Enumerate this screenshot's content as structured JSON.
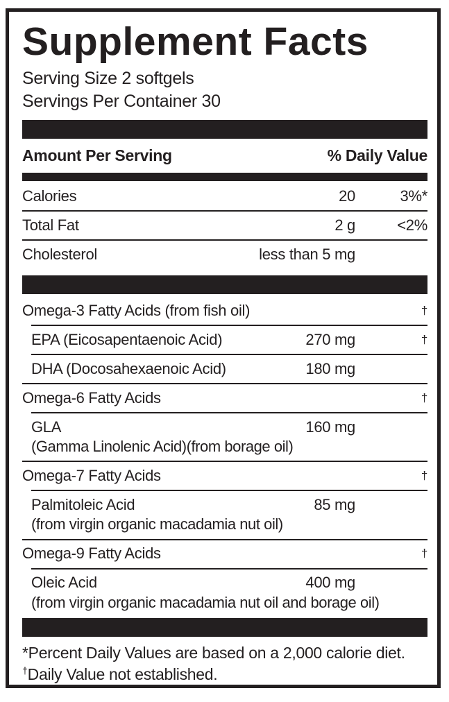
{
  "label": {
    "title": "Supplement Facts",
    "serving_size": "Serving Size 2 softgels",
    "servings_per_container": "Servings Per Container 30",
    "header": {
      "amount": "Amount Per Serving",
      "daily_value": "% Daily Value"
    },
    "rows": [
      {
        "name": "Calories",
        "amount": "20",
        "dv": "3%*"
      },
      {
        "name": "Total Fat",
        "amount": "2 g",
        "dv": "<2%"
      },
      {
        "name": "Cholesterol",
        "amount": "less than 5 mg",
        "dv": ""
      },
      {
        "name": "Omega-3 Fatty Acids (from fish oil)",
        "amount": "",
        "dv": "†"
      },
      {
        "name": "EPA (Eicosapentaenoic Acid)",
        "amount": "270 mg",
        "dv": "†"
      },
      {
        "name": "DHA (Docosahexaenoic Acid)",
        "amount": "180 mg",
        "dv": ""
      },
      {
        "name": "Omega-6 Fatty Acids",
        "amount": "",
        "dv": "†"
      },
      {
        "name": "GLA",
        "amount": "160 mg",
        "dv": "",
        "subline": "(Gamma Linolenic Acid)(from borage oil)"
      },
      {
        "name": "Omega-7 Fatty Acids",
        "amount": "",
        "dv": "†"
      },
      {
        "name": "Palmitoleic Acid",
        "amount": "85 mg",
        "dv": "",
        "subline": "(from virgin organic macadamia nut oil)"
      },
      {
        "name": "Omega-9 Fatty Acids",
        "amount": "",
        "dv": "†"
      },
      {
        "name": "Oleic Acid",
        "amount": "400 mg",
        "dv": "",
        "subline": "(from virgin organic macadamia nut oil and borage oil)"
      }
    ],
    "footnotes": {
      "percent_daily_value": "*Percent Daily Values are based on a 2,000 calorie diet.",
      "dagger_marker": "†",
      "dagger_text": "Daily Value not established."
    },
    "colors": {
      "ink": "#231f20",
      "background": "#ffffff"
    }
  }
}
